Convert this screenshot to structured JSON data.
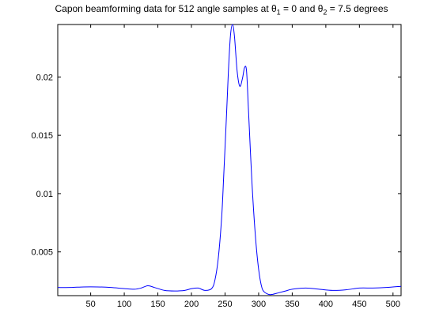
{
  "chart_data": {
    "type": "line",
    "title": {
      "prefix": "Capon beamforming data for 512 angle samples at ",
      "sym1": "θ",
      "sub1": "1",
      "middle": " = 0 and ",
      "sym2": "θ",
      "sub2": "2",
      "suffix": " = 7.5 degrees"
    },
    "xlabel": "",
    "ylabel": "",
    "xlim": [
      1,
      512
    ],
    "ylim": [
      0.00125,
      0.0245
    ],
    "x_ticks": [
      50,
      100,
      150,
      200,
      250,
      300,
      350,
      400,
      450,
      500
    ],
    "x_tick_labels": [
      "50",
      "100",
      "150",
      "200",
      "250",
      "300",
      "350",
      "400",
      "450",
      "500"
    ],
    "y_ticks": [
      0.005,
      0.01,
      0.015,
      0.02
    ],
    "y_tick_labels": [
      "0.005",
      "0.01",
      "0.015",
      "0.02"
    ],
    "grid": false,
    "colors": {
      "line": "#0000ff",
      "axes": "#000000"
    },
    "series": [
      {
        "x": [
          1,
          20,
          40,
          60,
          80,
          100,
          115,
          125,
          135,
          145,
          160,
          175,
          190,
          200,
          210,
          220,
          230,
          235,
          240,
          245,
          248,
          252,
          255,
          258,
          261,
          264,
          268,
          272,
          276,
          279,
          282,
          285,
          290,
          295,
          300,
          305,
          310,
          315,
          320,
          330,
          340,
          350,
          370,
          390,
          410,
          430,
          450,
          470,
          490,
          512
        ],
        "y": [
          0.00195,
          0.00195,
          0.002,
          0.002,
          0.00195,
          0.00185,
          0.0018,
          0.0019,
          0.0021,
          0.00195,
          0.0017,
          0.00165,
          0.0017,
          0.00185,
          0.0019,
          0.0017,
          0.00185,
          0.0026,
          0.0045,
          0.008,
          0.0115,
          0.0165,
          0.0205,
          0.0235,
          0.0245,
          0.0235,
          0.0205,
          0.0192,
          0.0199,
          0.0208,
          0.0205,
          0.017,
          0.011,
          0.0065,
          0.0035,
          0.0019,
          0.0015,
          0.00135,
          0.00135,
          0.0015,
          0.00165,
          0.0018,
          0.0019,
          0.0018,
          0.0017,
          0.00175,
          0.0019,
          0.0019,
          0.00195,
          0.00205
        ]
      }
    ]
  }
}
